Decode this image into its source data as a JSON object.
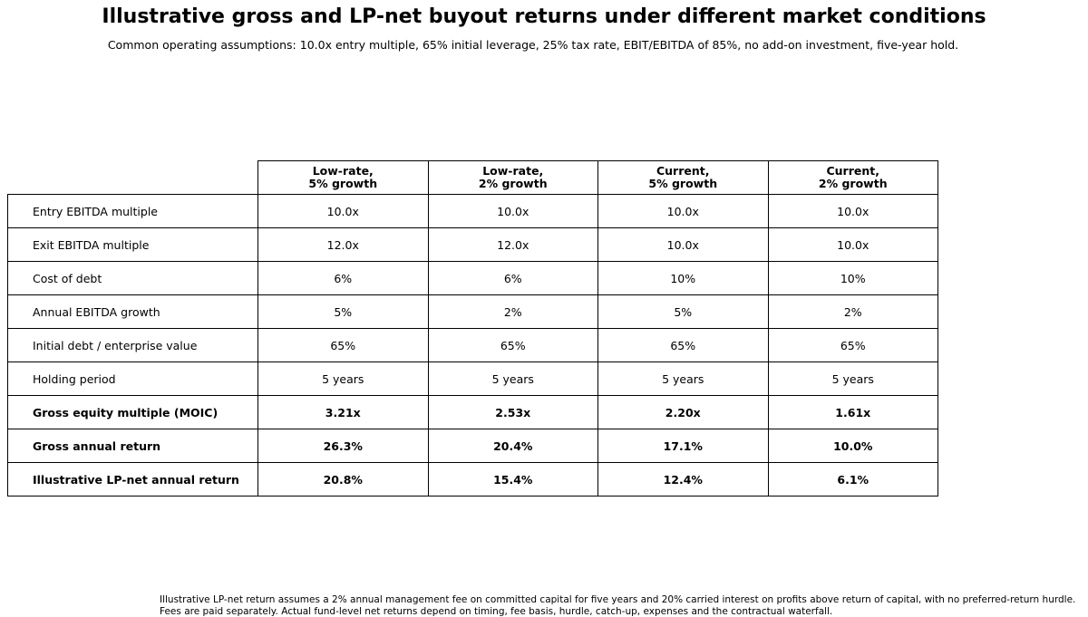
{
  "title": "Illustrative gross and LP-net buyout returns under different market conditions",
  "subtitle": "Common operating assumptions: 10.0x entry multiple, 65% initial leverage, 25% tax rate, EBIT/EBITDA of 85%, no add-on investment, five-year hold.",
  "table": {
    "columns": [
      {
        "line1": "Low-rate,",
        "line2": "5% growth"
      },
      {
        "line1": "Low-rate,",
        "line2": "2% growth"
      },
      {
        "line1": "Current,",
        "line2": "5% growth"
      },
      {
        "line1": "Current,",
        "line2": "2% growth"
      }
    ],
    "rows": [
      {
        "label": "Entry EBITDA multiple",
        "values": [
          "10.0x",
          "10.0x",
          "10.0x",
          "10.0x"
        ],
        "bold": false
      },
      {
        "label": "Exit EBITDA multiple",
        "values": [
          "12.0x",
          "12.0x",
          "10.0x",
          "10.0x"
        ],
        "bold": false
      },
      {
        "label": "Cost of debt",
        "values": [
          "6%",
          "6%",
          "10%",
          "10%"
        ],
        "bold": false
      },
      {
        "label": "Annual EBITDA growth",
        "values": [
          "5%",
          "2%",
          "5%",
          "2%"
        ],
        "bold": false
      },
      {
        "label": "Initial debt / enterprise value",
        "values": [
          "65%",
          "65%",
          "65%",
          "65%"
        ],
        "bold": false
      },
      {
        "label": "Holding period",
        "values": [
          "5 years",
          "5 years",
          "5 years",
          "5 years"
        ],
        "bold": false
      },
      {
        "label": "Gross equity multiple (MOIC)",
        "values": [
          "3.21x",
          "2.53x",
          "2.20x",
          "1.61x"
        ],
        "bold": true
      },
      {
        "label": "Gross annual return",
        "values": [
          "26.3%",
          "20.4%",
          "17.1%",
          "10.0%"
        ],
        "bold": true
      },
      {
        "label": "Illustrative LP-net annual return",
        "values": [
          "20.8%",
          "15.4%",
          "12.4%",
          "6.1%"
        ],
        "bold": true
      }
    ]
  },
  "footnote": {
    "line1": "Illustrative LP-net return assumes a 2% annual management fee on committed capital for five years and 20% carried interest on profits above return of capital, with no preferred-return hurdle.",
    "line2": "Fees are paid separately. Actual fund-level net returns depend on timing, fee basis, hurdle, catch-up, expenses and the contractual waterfall."
  }
}
